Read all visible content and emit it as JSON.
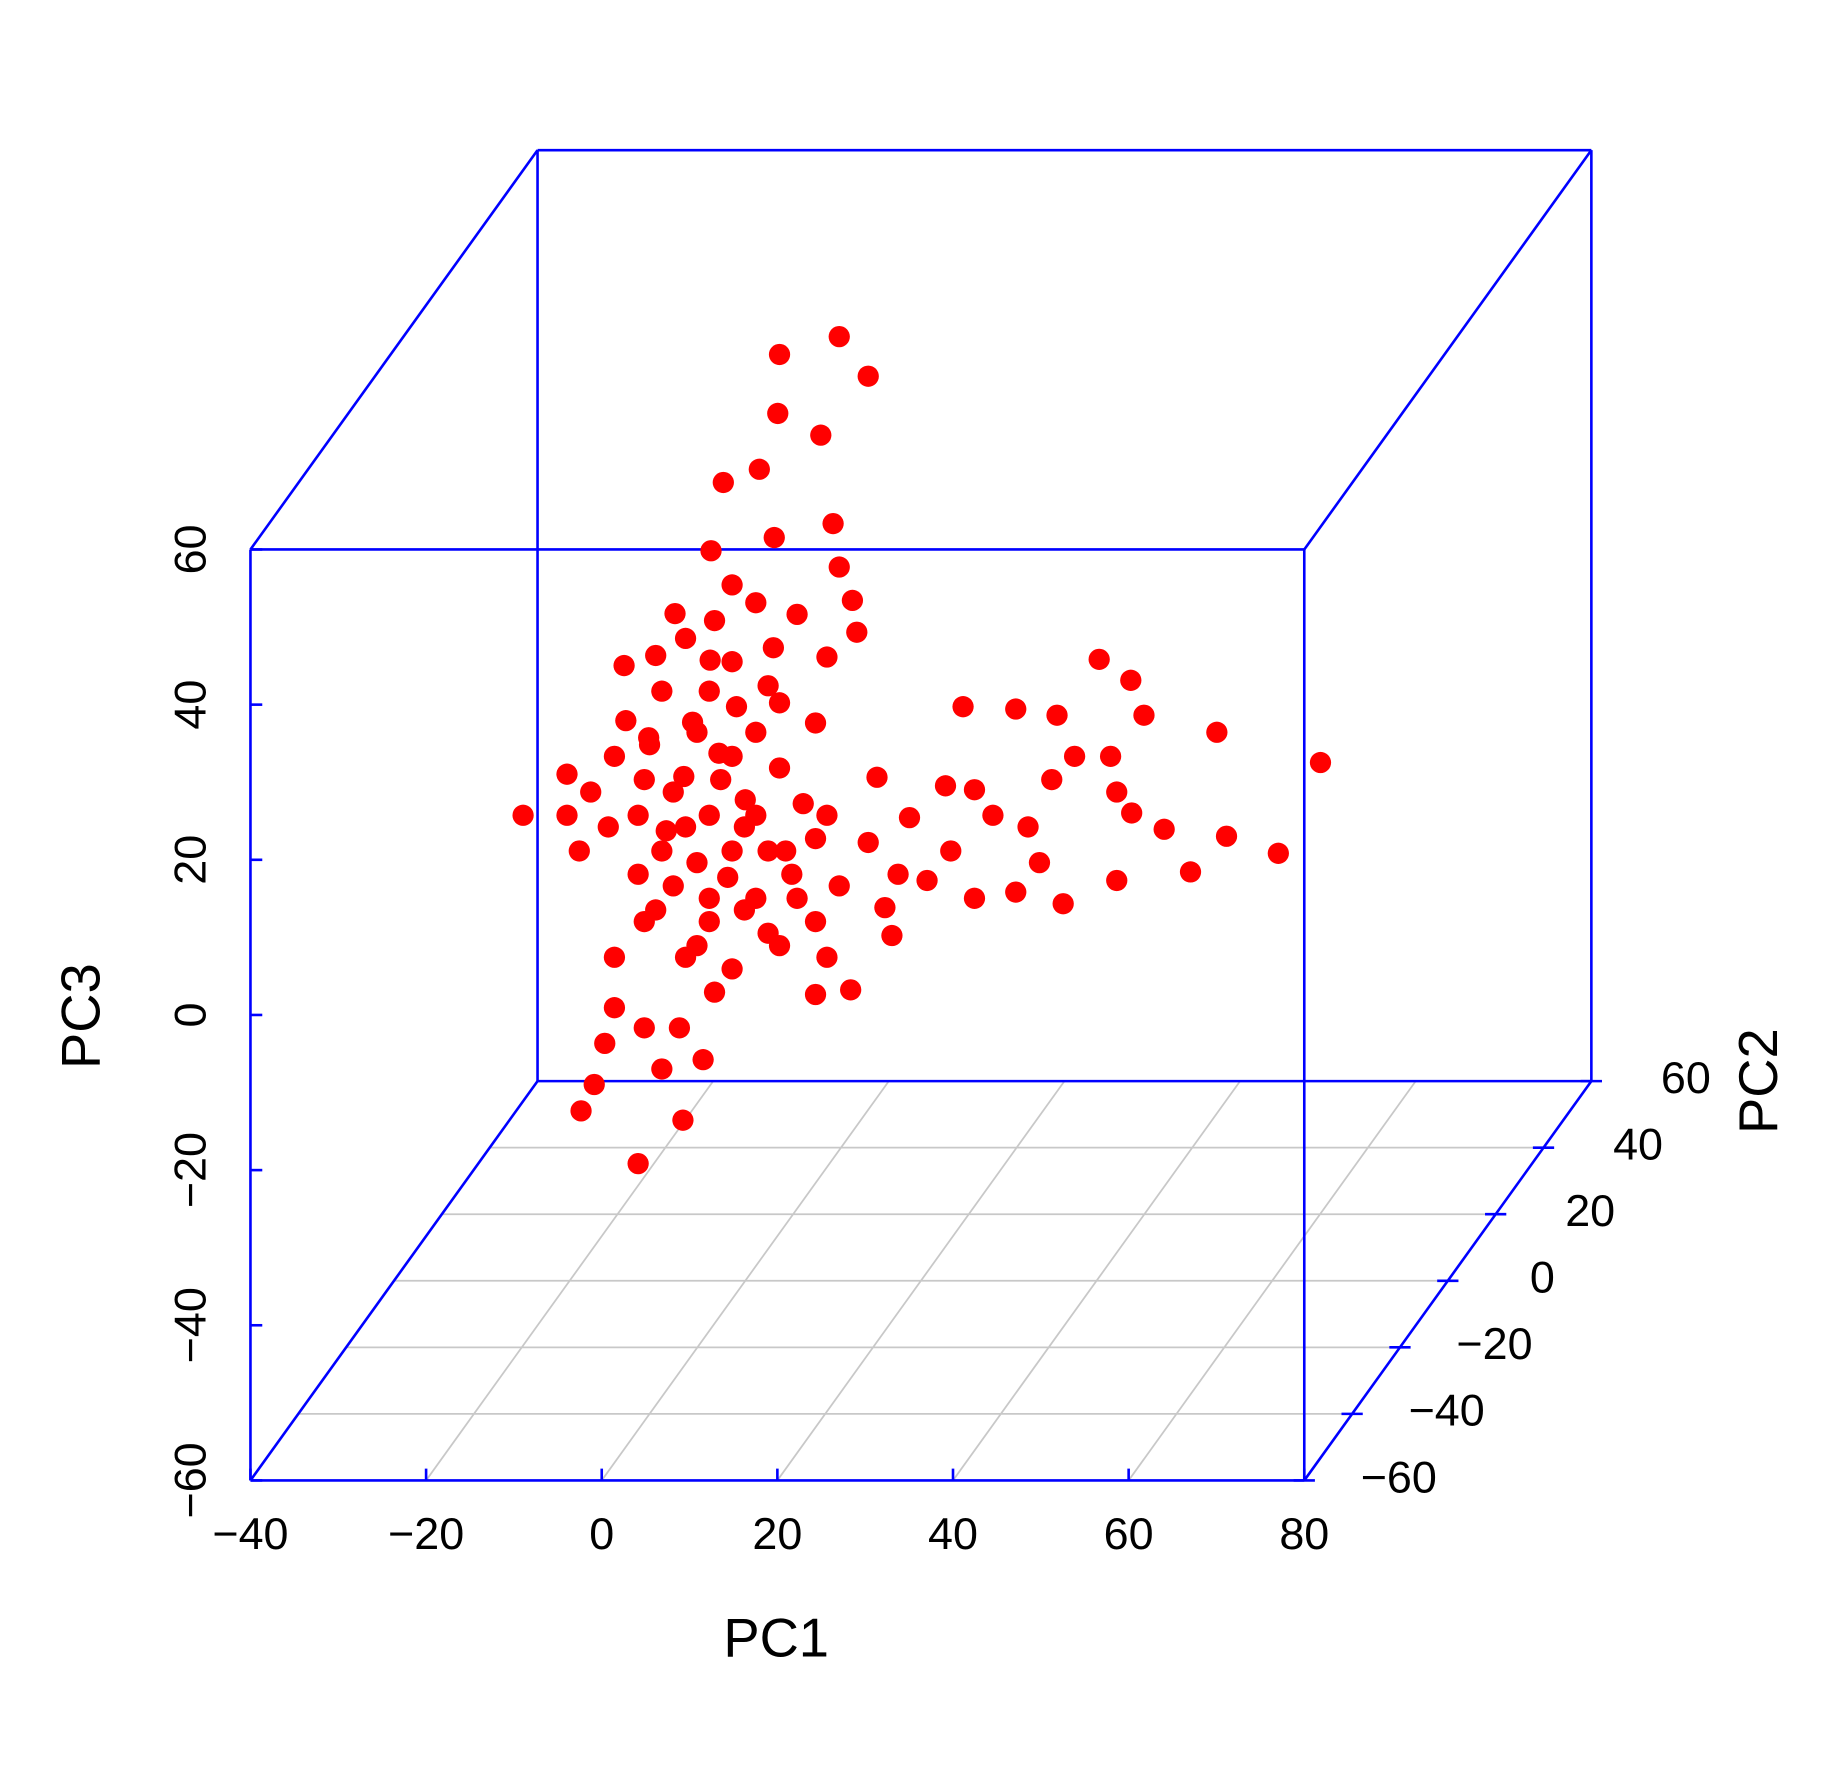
{
  "chart_data": {
    "type": "scatter3d",
    "xlabel": "PC1",
    "ylabel": "PC2",
    "zlabel": "PC3",
    "xlim": [
      -40,
      80
    ],
    "ylim": [
      -60,
      60
    ],
    "zlim": [
      -60,
      60
    ],
    "xticks": [
      {
        "value": -40,
        "label": "−40"
      },
      {
        "value": -20,
        "label": "−20"
      },
      0,
      20,
      40,
      60,
      80
    ],
    "yticks": [
      {
        "value": -60,
        "label": "−60"
      },
      {
        "value": -40,
        "label": "−40"
      },
      {
        "value": -20,
        "label": "−20"
      },
      0,
      20,
      40,
      60
    ],
    "zticks": [
      {
        "value": -60,
        "label": "−60"
      },
      {
        "value": -40,
        "label": "−40"
      },
      {
        "value": -20,
        "label": "−20"
      },
      0,
      20,
      40,
      60
    ],
    "box_color": "#0000ff",
    "grid": true,
    "grid_color": "#c8c8c8",
    "series": [
      {
        "color": "#ff0000",
        "x": [
          -25.3,
          65.5,
          60.7,
          53.7,
          10.7,
          14.0,
          3.9,
          8.6,
          3.7,
          1.6,
          -2.5,
          10.0,
          -3.9,
          3.3,
          10.7,
          12.7,
          12.2,
          -12.2,
          -18.7,
          -17.2,
          -7.1,
          -16.0,
          -4.8,
          -14.9,
          -9.5,
          -11.5,
          -7.5,
          -3.5,
          8.0,
          12.0,
          9.3,
          16.7,
          15.9,
          18.7,
          15.0,
          14.0,
          17.4,
          22.8,
          24.8,
          30.8,
          35.5,
          40.3,
          43.9,
          45.4,
          41.6,
          42.3,
          44.0,
          47.7,
          50.7,
          54.8,
          42.3,
          36.2,
          30.8,
          33.5,
          32.2,
          28.2,
          34.9,
          37.5,
          26.1,
          23.4,
          26.1,
          20.7,
          10.7,
          8.0,
          3.9,
          -1.5,
          -6.8,
          -11.5,
          -14.9,
          -4.1,
          1.2,
          5.3,
          8.0,
          6.6,
          9.3,
          3.9,
          1.2,
          8.0,
          3.9,
          2.6,
          -1.5,
          3.2,
          9.3,
          5.9,
          1.2,
          -1.5,
          -3.5,
          -6.8,
          -10.2,
          -13.8,
          -9.5,
          -4.1,
          -13.6,
          -10.9,
          -5.5,
          -1.5,
          -20.3,
          -17.6,
          -20.3,
          -15.6,
          -12.2,
          -8.2,
          -4.1,
          -0.1,
          -9.5,
          -5.5,
          -1.5,
          2.6,
          -12.2,
          -8.2,
          -4.1,
          -0.1,
          -10.2,
          -6.8,
          -2.8,
          1.2,
          -14.9,
          -11.5,
          -18.9,
          4.6,
          5.9,
          2.6,
          -5.5,
          -7,
          -3,
          -9,
          0,
          -6,
          -2,
          -11,
          -4,
          -8,
          -1
        ],
        "y": [
          0,
          0,
          0,
          0,
          0,
          0,
          0,
          0,
          0,
          0,
          0,
          0,
          0,
          0,
          0,
          0,
          0,
          0,
          0,
          0,
          0,
          0,
          0,
          0,
          0,
          0,
          0,
          0,
          0,
          0,
          0,
          0,
          0,
          0,
          0,
          0,
          0,
          0,
          0,
          0,
          0,
          0,
          0,
          0,
          0,
          0,
          0,
          0,
          0,
          0,
          0,
          0,
          0,
          0,
          0,
          0,
          0,
          0,
          0,
          0,
          0,
          0,
          0,
          0,
          0,
          0,
          0,
          0,
          0,
          0,
          0,
          0,
          0,
          0,
          0,
          0,
          0,
          0,
          0,
          0,
          0,
          0,
          0,
          0,
          0,
          0,
          0,
          0,
          0,
          0,
          0,
          0,
          0,
          0,
          0,
          0,
          0,
          0,
          0,
          0,
          0,
          0,
          0,
          0,
          0,
          0,
          0,
          0,
          0,
          0,
          0,
          0,
          0,
          0,
          0,
          0,
          0,
          0,
          0,
          0,
          0,
          0,
          0,
          0,
          0,
          0,
          0,
          0,
          0,
          0,
          0,
          0,
          0
        ],
        "z": [
          0.0,
          6.8,
          -4.9,
          10.7,
          61.7,
          56.6,
          59.4,
          49.0,
          51.8,
          44.6,
          42.9,
          37.6,
          34.1,
          35.8,
          32.0,
          23.6,
          27.7,
          -44.9,
          -38.1,
          -34.7,
          -39.3,
          -29.4,
          -31.5,
          -24.8,
          -32.7,
          -27.4,
          -27.4,
          -22.8,
          -23.1,
          -22.5,
          -18.3,
          -15.5,
          -11.9,
          -0.3,
          4.9,
          -3.5,
          -7.6,
          3.8,
          14.0,
          13.7,
          12.9,
          20.1,
          17.4,
          12.9,
          7.6,
          3.0,
          0.3,
          -1.8,
          -7.3,
          -2.7,
          -8.4,
          -11.4,
          -9.9,
          -6.1,
          -1.5,
          0.0,
          4.6,
          7.6,
          3.3,
          -4.6,
          -10.7,
          -8.4,
          -9.1,
          -13.7,
          -16.8,
          -19.8,
          -18.3,
          -13.7,
          -18.3,
          -13.7,
          -10.7,
          -7.6,
          -3.0,
          1.5,
          0.0,
          6.1,
          10.7,
          11.9,
          14.5,
          16.7,
          19.8,
          21.6,
          20.4,
          25.9,
          27.4,
          29.7,
          25.1,
          22.8,
          20.6,
          19.3,
          16.0,
          16.0,
          12.2,
          9.1,
          10.7,
          7.6,
          5.3,
          3.0,
          0.0,
          -1.5,
          0.0,
          3.0,
          0.0,
          -1.5,
          -4.6,
          -6.1,
          -4.6,
          -4.6,
          -7.6,
          -9.1,
          -10.7,
          -12.2,
          -12.2,
          -1.5,
          4.6,
          0.0,
          7.6,
          4.6,
          -4.6,
          -4.6,
          -10.7,
          -15.2,
          -16.8,
          5,
          8,
          -2,
          2,
          12,
          -8,
          10,
          20,
          26,
          14
        ]
      }
    ]
  }
}
